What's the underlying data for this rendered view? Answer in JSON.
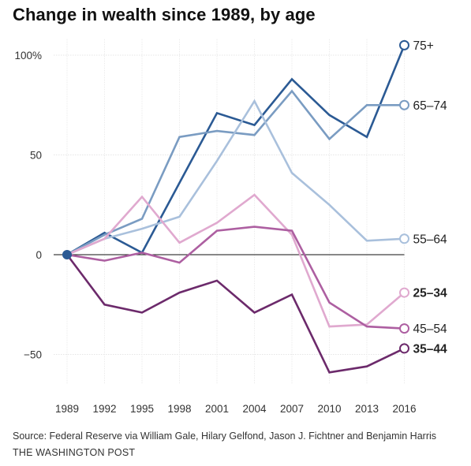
{
  "chart_data": {
    "type": "line",
    "title": "Change in wealth since 1989, by age",
    "xlabel": "",
    "ylabel": "",
    "x": [
      "1989",
      "1992",
      "1995",
      "1998",
      "2001",
      "2004",
      "2007",
      "2010",
      "2013",
      "2016"
    ],
    "ylim": [
      -65,
      108
    ],
    "y_ticks": [
      100,
      50,
      0,
      -50
    ],
    "y_tick_labels": [
      "100%",
      "50",
      "0",
      "−50"
    ],
    "grid": true,
    "legend": "direct labels at line ends (right)",
    "series": [
      {
        "name": "75+",
        "color": "#2b5a94",
        "bold": false,
        "values": [
          0,
          11,
          1,
          36,
          71,
          65,
          88,
          70,
          59,
          105
        ]
      },
      {
        "name": "65–74",
        "color": "#7a9cc2",
        "bold": false,
        "values": [
          0,
          10,
          18,
          59,
          62,
          60,
          82,
          58,
          75,
          75
        ]
      },
      {
        "name": "55–64",
        "color": "#a9c0dc",
        "bold": false,
        "values": [
          0,
          8,
          13,
          19,
          47,
          77,
          41,
          25,
          7,
          8
        ]
      },
      {
        "name": "25–34",
        "color": "#e0a9cf",
        "bold": true,
        "values": [
          0,
          8,
          29,
          6,
          16,
          30,
          10,
          -36,
          -35,
          -19
        ]
      },
      {
        "name": "45–54",
        "color": "#ad5fa1",
        "bold": false,
        "values": [
          0,
          -3,
          1,
          -4,
          12,
          14,
          12,
          -24,
          -36,
          -37
        ]
      },
      {
        "name": "35–44",
        "color": "#6c2a6b",
        "bold": true,
        "values": [
          0,
          -25,
          -29,
          -19,
          -13,
          -29,
          -20,
          -59,
          -56,
          -47
        ]
      }
    ]
  },
  "footer": {
    "source": "Source: Federal Reserve via William Gale, Hilary Gelfond, Jason J. Fichtner and Benjamin Harris",
    "credit": "THE WASHINGTON POST"
  }
}
